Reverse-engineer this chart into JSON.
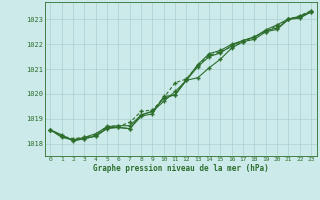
{
  "title": "Graphe pression niveau de la mer (hPa)",
  "bg_color": "#cceaea",
  "grid_color": "#aacfcf",
  "line_color": "#2d6e2d",
  "xlim": [
    -0.5,
    23.5
  ],
  "ylim": [
    1017.5,
    1023.7
  ],
  "yticks": [
    1018,
    1019,
    1020,
    1021,
    1022,
    1023
  ],
  "xticks": [
    0,
    1,
    2,
    3,
    4,
    5,
    6,
    7,
    8,
    9,
    10,
    11,
    12,
    13,
    14,
    15,
    16,
    17,
    18,
    19,
    20,
    21,
    22,
    23
  ],
  "series": [
    [
      1018.55,
      1018.35,
      1018.1,
      1018.2,
      1018.3,
      1018.65,
      1018.65,
      1018.6,
      1019.1,
      1019.2,
      1019.9,
      1019.95,
      1020.55,
      1020.65,
      1021.05,
      1021.4,
      1021.85,
      1022.1,
      1022.2,
      1022.5,
      1022.6,
      1023.0,
      1023.05,
      1023.3
    ],
    [
      1018.55,
      1018.25,
      1018.15,
      1018.2,
      1018.3,
      1018.6,
      1018.65,
      1018.6,
      1019.15,
      1019.3,
      1019.7,
      1020.1,
      1020.55,
      1021.1,
      1021.5,
      1021.65,
      1021.95,
      1022.15,
      1022.3,
      1022.55,
      1022.65,
      1023.0,
      1023.1,
      1023.3
    ],
    [
      1018.55,
      1018.3,
      1018.2,
      1018.25,
      1018.35,
      1018.7,
      1018.7,
      1018.85,
      1019.3,
      1019.35,
      1019.85,
      1020.45,
      1020.6,
      1021.15,
      1021.55,
      1021.7,
      1021.9,
      1022.1,
      1022.3,
      1022.5,
      1022.75,
      1023.0,
      1023.15,
      1023.35
    ],
    [
      1018.55,
      1018.3,
      1018.15,
      1018.25,
      1018.4,
      1018.68,
      1018.72,
      1018.72,
      1019.15,
      1019.3,
      1019.82,
      1019.97,
      1020.58,
      1021.18,
      1021.62,
      1021.75,
      1022.0,
      1022.15,
      1022.28,
      1022.58,
      1022.78,
      1023.02,
      1023.12,
      1023.33
    ]
  ]
}
